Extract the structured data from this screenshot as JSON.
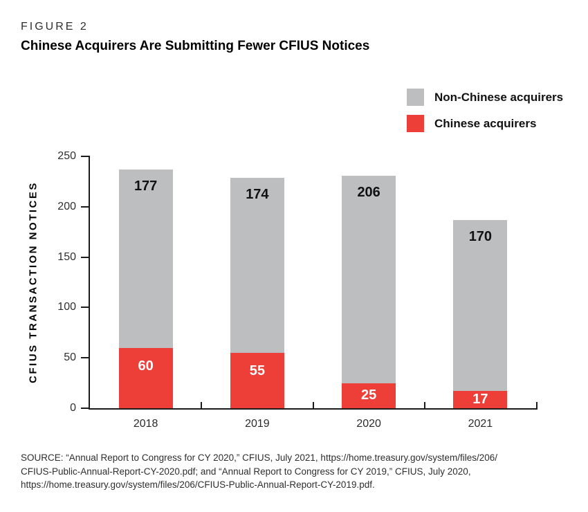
{
  "figure_label": "FIGURE 2",
  "title": "Chinese Acquirers Are Submitting Fewer CFIUS Notices",
  "legend": [
    {
      "label": "Non-Chinese acquirers",
      "color": "#bdbec0",
      "id": "non-chinese"
    },
    {
      "label": "Chinese acquirers",
      "color": "#ee3e38",
      "id": "chinese"
    }
  ],
  "chart_data": {
    "type": "bar",
    "stacked": true,
    "categories": [
      "2018",
      "2019",
      "2020",
      "2021"
    ],
    "series": [
      {
        "name": "Chinese acquirers",
        "id": "chinese",
        "color": "#ee3e38",
        "label_color": "#ffffff",
        "values": [
          60,
          55,
          25,
          17
        ]
      },
      {
        "name": "Non-Chinese acquirers",
        "id": "non-chinese",
        "color": "#bdbec0",
        "label_color": "#111111",
        "values": [
          177,
          174,
          206,
          170
        ]
      }
    ],
    "title": "Chinese Acquirers Are Submitting Fewer CFIUS Notices",
    "xlabel": "",
    "ylabel": "CFIUS TRANSACTION NOTICES",
    "ylim": [
      0,
      250
    ],
    "yticks": [
      0,
      50,
      100,
      150,
      200,
      250
    ],
    "grid": false,
    "legend_position": "top-right",
    "axis_color": "#1a1a1a"
  },
  "source": {
    "lines": [
      "SOURCE: “Annual Report to Congress for CY 2020,” CFIUS, July 2021, https://home.treasury.gov/system/files/206/",
      "CFIUS-Public-Annual-Report-CY-2020.pdf; and “Annual Report to Congress for CY 2019,” CFIUS, July 2020,",
      "https://home.treasury.gov/system/files/206/CFIUS-Public-Annual-Report-CY-2019.pdf."
    ]
  }
}
